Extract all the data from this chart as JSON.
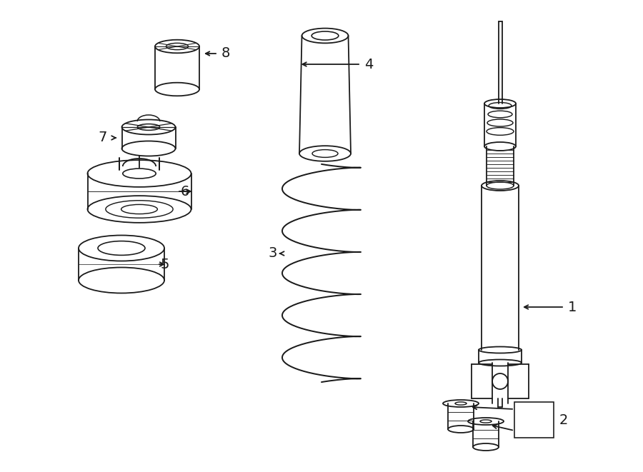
{
  "bg_color": "#ffffff",
  "line_color": "#1a1a1a",
  "fig_width": 9.0,
  "fig_height": 6.61,
  "dpi": 100,
  "lw": 1.3
}
